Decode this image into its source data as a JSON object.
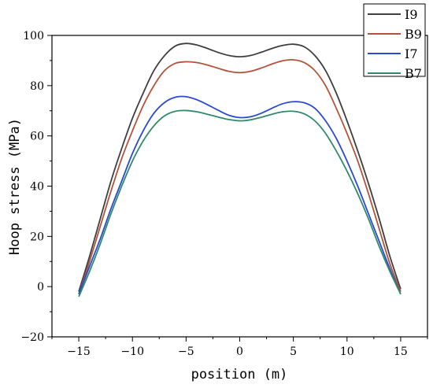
{
  "chart_data": {
    "type": "line",
    "title": "",
    "xlabel": "position (m)",
    "ylabel": "Hoop stress (MPa)",
    "xlim": [
      -17.5,
      17.5
    ],
    "ylim": [
      -20,
      100
    ],
    "xticks": [
      -15,
      -10,
      -5,
      0,
      5,
      10,
      15
    ],
    "yticks": [
      -20,
      0,
      20,
      40,
      60,
      80,
      100
    ],
    "xtick_labels": [
      "−15",
      "−10",
      "−5",
      "0",
      "5",
      "10",
      "15"
    ],
    "ytick_labels": [
      "−20",
      "0",
      "20",
      "40",
      "60",
      "80",
      "100"
    ],
    "grid": false,
    "legend_position": "top-right",
    "series": [
      {
        "name": "I9",
        "color": "#3f3f3f",
        "x": [
          -15,
          -14,
          -13,
          -12,
          -11,
          -10,
          -9,
          -8,
          -7,
          -6,
          -5,
          -4,
          -3,
          -2,
          -1,
          0,
          1,
          2,
          3,
          4,
          5,
          6,
          7,
          8,
          9,
          10,
          11,
          12,
          13,
          14,
          15
        ],
        "y": [
          -2,
          12,
          27,
          42,
          55,
          67,
          77,
          86,
          92,
          95.8,
          96.8,
          96.2,
          94.8,
          93.2,
          92,
          91.5,
          92,
          93.3,
          94.8,
          96,
          96.5,
          95.5,
          92,
          86,
          77,
          66,
          54,
          41,
          27,
          12,
          -1
        ]
      },
      {
        "name": "B9",
        "color": "#b5533a",
        "x": [
          -15,
          -14,
          -13,
          -12,
          -11,
          -10,
          -9,
          -8,
          -7,
          -6,
          -5,
          -4,
          -3,
          -2,
          -1,
          0,
          1,
          2,
          3,
          4,
          5,
          6,
          7,
          8,
          9,
          10,
          11,
          12,
          13,
          14,
          15
        ],
        "y": [
          -3,
          10,
          24,
          38,
          51,
          62,
          72,
          80,
          86,
          88.9,
          89.5,
          89.2,
          88.2,
          86.9,
          85.7,
          85.2,
          85.7,
          87,
          88.6,
          89.9,
          90.3,
          89.2,
          86,
          80,
          71,
          61,
          50,
          37,
          23,
          9,
          -2
        ]
      },
      {
        "name": "I7",
        "color": "#2a4ad2",
        "x": [
          -15,
          -14,
          -13,
          -12,
          -11,
          -10,
          -9,
          -8,
          -7,
          -6,
          -5,
          -4,
          -3,
          -2,
          -1,
          0,
          1,
          2,
          3,
          4,
          5,
          6,
          7,
          8,
          9,
          10,
          11,
          12,
          13,
          14,
          15
        ],
        "y": [
          -3,
          8,
          19,
          31,
          42,
          53,
          62,
          69,
          73.3,
          75.4,
          75.6,
          74.4,
          72.4,
          70.2,
          68.2,
          67.3,
          67.6,
          69,
          71,
          72.8,
          73.6,
          73.2,
          71,
          66,
          59,
          50,
          40,
          29,
          18,
          7,
          -3
        ]
      },
      {
        "name": "B7",
        "color": "#2e8b6a",
        "x": [
          -15,
          -14,
          -13,
          -12,
          -11,
          -10,
          -9,
          -8,
          -7,
          -6,
          -5,
          -4,
          -3,
          -2,
          -1,
          0,
          1,
          2,
          3,
          4,
          5,
          6,
          7,
          8,
          9,
          10,
          11,
          12,
          13,
          14,
          15
        ],
        "y": [
          -4,
          6,
          17,
          29,
          40,
          50,
          58,
          64,
          68,
          69.8,
          70.1,
          69.6,
          68.6,
          67.5,
          66.5,
          66,
          66.4,
          67.4,
          68.6,
          69.6,
          69.8,
          68.8,
          66,
          61,
          54,
          46,
          37,
          27,
          16,
          6,
          -3
        ]
      }
    ]
  }
}
